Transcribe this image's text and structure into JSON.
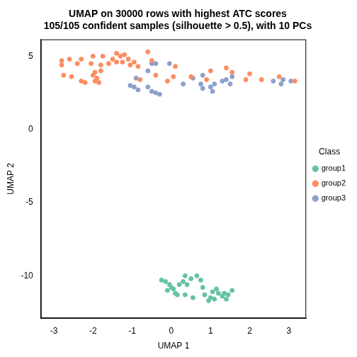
{
  "chart_data": {
    "type": "scatter",
    "title": "UMAP on 30000 rows with highest ATC scores",
    "subtitle": "105/105 confident samples (silhouette > 0.5), with 10 PCs",
    "x_label": "UMAP 1",
    "y_label": "UMAP 2",
    "legend_title": "Class",
    "legend": "right",
    "grid": false,
    "marker": "circle",
    "xlim": [
      -3.33,
      3.44
    ],
    "ylim": [
      -12.9,
      6.15
    ],
    "xticks": [
      -3,
      -2,
      -1,
      0,
      1,
      2,
      3
    ],
    "yticks": [
      -10,
      -5,
      0,
      5
    ],
    "series": [
      {
        "name": "group1",
        "color": "#66c2a5",
        "values": [
          [
            -0.25,
            -10.3
          ],
          [
            -0.15,
            -10.4
          ],
          [
            -0.05,
            -10.6
          ],
          [
            0.0,
            -10.8
          ],
          [
            -0.1,
            -11.0
          ],
          [
            0.05,
            -10.9
          ],
          [
            0.1,
            -11.2
          ],
          [
            0.2,
            -10.6
          ],
          [
            0.3,
            -10.4
          ],
          [
            0.35,
            -10.0
          ],
          [
            0.4,
            -10.6
          ],
          [
            0.35,
            -11.3
          ],
          [
            0.5,
            -10.2
          ],
          [
            0.55,
            -11.5
          ],
          [
            0.65,
            -10.0
          ],
          [
            0.75,
            -10.3
          ],
          [
            0.8,
            -10.8
          ],
          [
            0.85,
            -11.3
          ],
          [
            0.95,
            -11.7
          ],
          [
            1.0,
            -11.5
          ],
          [
            1.05,
            -11.1
          ],
          [
            1.15,
            -10.9
          ],
          [
            1.2,
            -11.2
          ],
          [
            1.3,
            -11.4
          ],
          [
            1.35,
            -11.2
          ],
          [
            1.4,
            -11.6
          ],
          [
            1.45,
            -11.3
          ],
          [
            1.55,
            -11.0
          ],
          [
            0.15,
            -11.3
          ],
          [
            1.1,
            -11.6
          ]
        ]
      },
      {
        "name": "group2",
        "color": "#fc8d62",
        "values": [
          [
            -2.8,
            4.7
          ],
          [
            -2.8,
            4.4
          ],
          [
            -2.75,
            3.7
          ],
          [
            -2.6,
            4.8
          ],
          [
            -2.55,
            3.6
          ],
          [
            -2.4,
            4.5
          ],
          [
            -2.3,
            3.3
          ],
          [
            -2.2,
            3.2
          ],
          [
            -2.3,
            4.8
          ],
          [
            -2.05,
            4.5
          ],
          [
            -2.0,
            5.0
          ],
          [
            -1.95,
            3.9
          ],
          [
            -1.9,
            3.5
          ],
          [
            -1.85,
            3.2
          ],
          [
            -1.95,
            3.3
          ],
          [
            -2.0,
            3.7
          ],
          [
            -1.8,
            4.0
          ],
          [
            -1.8,
            4.4
          ],
          [
            -1.75,
            5.0
          ],
          [
            -1.6,
            4.5
          ],
          [
            -1.5,
            4.8
          ],
          [
            -1.4,
            5.2
          ],
          [
            -1.3,
            5.0
          ],
          [
            -1.4,
            4.6
          ],
          [
            -1.25,
            4.6
          ],
          [
            -1.2,
            5.1
          ],
          [
            -1.1,
            4.8
          ],
          [
            -1.05,
            4.4
          ],
          [
            -0.95,
            4.6
          ],
          [
            -0.85,
            4.3
          ],
          [
            -0.8,
            3.4
          ],
          [
            -0.6,
            5.3
          ],
          [
            -0.5,
            4.7
          ],
          [
            -0.4,
            3.7
          ],
          [
            -0.1,
            3.3
          ],
          [
            0.05,
            3.6
          ],
          [
            0.1,
            4.3
          ],
          [
            0.5,
            3.6
          ],
          [
            0.9,
            3.4
          ],
          [
            1.0,
            4.0
          ],
          [
            1.4,
            4.2
          ],
          [
            1.55,
            3.9
          ],
          [
            1.9,
            3.4
          ],
          [
            2.0,
            3.8
          ],
          [
            2.3,
            3.4
          ],
          [
            2.75,
            3.6
          ],
          [
            3.15,
            3.3
          ]
        ]
      },
      {
        "name": "group3",
        "color": "#8da0cb",
        "values": [
          [
            -1.05,
            3.0
          ],
          [
            -0.9,
            3.5
          ],
          [
            -0.85,
            2.7
          ],
          [
            -0.95,
            2.9
          ],
          [
            -0.6,
            2.9
          ],
          [
            -0.5,
            2.6
          ],
          [
            -0.4,
            2.5
          ],
          [
            -0.3,
            2.4
          ],
          [
            -0.5,
            4.5
          ],
          [
            -0.4,
            4.5
          ],
          [
            -0.6,
            4.0
          ],
          [
            -0.05,
            4.5
          ],
          [
            0.3,
            3.1
          ],
          [
            0.55,
            3.5
          ],
          [
            0.8,
            3.7
          ],
          [
            0.75,
            3.1
          ],
          [
            0.8,
            2.8
          ],
          [
            1.0,
            2.9
          ],
          [
            1.1,
            3.1
          ],
          [
            1.05,
            2.6
          ],
          [
            1.3,
            3.3
          ],
          [
            1.4,
            3.4
          ],
          [
            1.5,
            3.1
          ],
          [
            1.55,
            3.6
          ],
          [
            2.6,
            3.3
          ],
          [
            2.8,
            3.1
          ],
          [
            2.85,
            3.4
          ],
          [
            3.05,
            3.3
          ]
        ]
      }
    ]
  }
}
